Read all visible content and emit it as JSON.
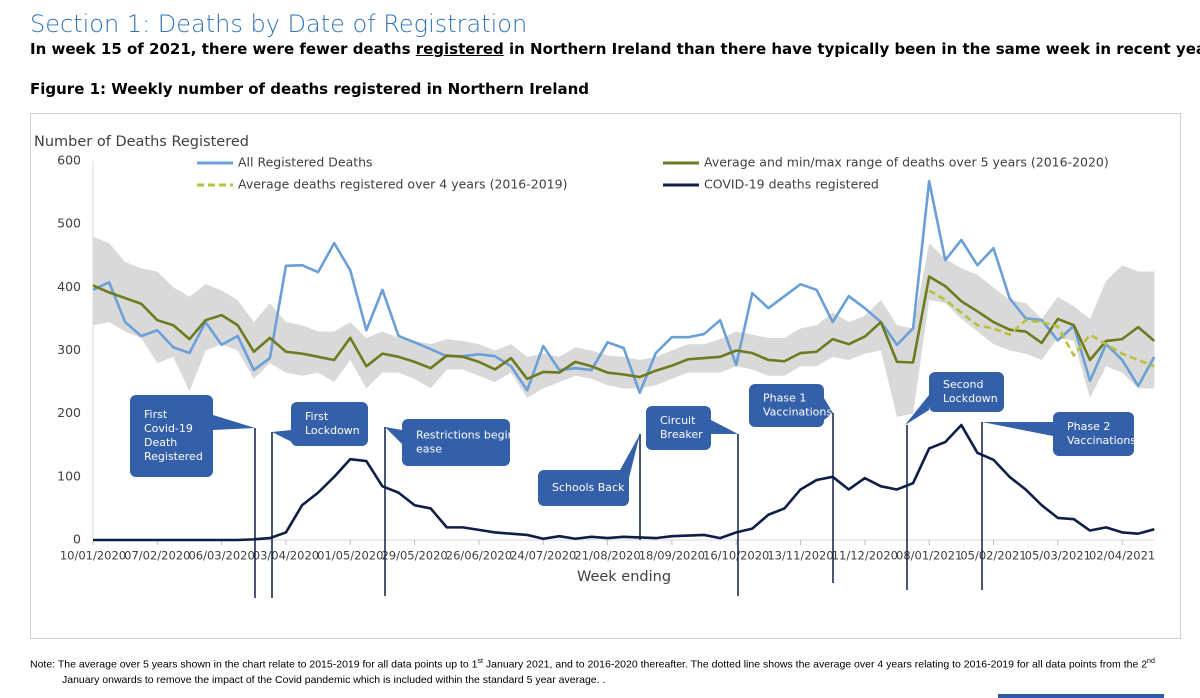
{
  "header": {
    "title": "Section 1: Deaths by Date of Registration",
    "subtitle": [
      "In week 15 of 2021, there were fewer deaths ",
      "registered",
      " in Northern Ireland than there have typically been in the same week in recent years."
    ],
    "figure_title": "Figure 1: Weekly number of deaths registered in Northern Ireland"
  },
  "chart_data": {
    "type": "line",
    "y_label": "Number of Deaths Registered",
    "x_label": "Week ending",
    "ylim": [
      0,
      600
    ],
    "yticks": [
      0,
      100,
      200,
      300,
      400,
      500,
      600
    ],
    "grid": false,
    "legend": "top",
    "categories": [
      "10/01/2020",
      null,
      null,
      null,
      "07/02/2020",
      null,
      null,
      null,
      "06/03/2020",
      null,
      null,
      null,
      "03/04/2020",
      null,
      null,
      null,
      "01/05/2020",
      null,
      null,
      null,
      "29/05/2020",
      null,
      null,
      null,
      "26/06/2020",
      null,
      null,
      null,
      "24/07/2020",
      null,
      null,
      null,
      "21/08/2020",
      null,
      null,
      null,
      "18/09/2020",
      null,
      null,
      null,
      "16/10/2020",
      null,
      null,
      null,
      "13/11/2020",
      null,
      null,
      null,
      "11/12/2020",
      null,
      null,
      null,
      "08/01/2021",
      null,
      null,
      null,
      "05/02/2021",
      null,
      null,
      null,
      "05/03/2021",
      null,
      null,
      null,
      "02/04/2021",
      null,
      null
    ],
    "series": [
      {
        "name": "All Registered Deaths",
        "color": "#6a9fd8",
        "style": "solid",
        "values": [
          396,
          408,
          345,
          323,
          332,
          305,
          296,
          345,
          309,
          323,
          269,
          288,
          434,
          435,
          424,
          470,
          427,
          332,
          396,
          323,
          313,
          302,
          291,
          291,
          294,
          291,
          275,
          237,
          307,
          269,
          272,
          269,
          313,
          304,
          233,
          296,
          321,
          321,
          326,
          348,
          277,
          391,
          367,
          386,
          405,
          396,
          345,
          386,
          367,
          345,
          309,
          335,
          568,
          443,
          475,
          435,
          462,
          383,
          351,
          348,
          316,
          339,
          252,
          310,
          285,
          244,
          290
        ]
      },
      {
        "name": "Average and min/max range of deaths over 5 years (2016-2020)",
        "color": "#6f7a1f",
        "style": "solid",
        "band_color": "#d9d9d9",
        "values": [
          403,
          392,
          383,
          374,
          348,
          340,
          318,
          348,
          356,
          340,
          298,
          320,
          298,
          295,
          290,
          285,
          320,
          275,
          295,
          290,
          282,
          272,
          292,
          290,
          282,
          270,
          288,
          255,
          266,
          265,
          282,
          275,
          265,
          262,
          258,
          268,
          276,
          286,
          288,
          290,
          300,
          296,
          285,
          283,
          296,
          298,
          318,
          310,
          322,
          345,
          282,
          281,
          417,
          402,
          378,
          362,
          345,
          333,
          330,
          312,
          350,
          340,
          285,
          315,
          318,
          337,
          315
        ],
        "max": [
          480,
          470,
          440,
          430,
          425,
          400,
          385,
          405,
          395,
          380,
          345,
          375,
          345,
          340,
          330,
          330,
          345,
          320,
          330,
          320,
          315,
          310,
          318,
          315,
          310,
          300,
          310,
          290,
          295,
          290,
          305,
          300,
          292,
          290,
          285,
          290,
          300,
          310,
          310,
          318,
          330,
          325,
          320,
          320,
          335,
          340,
          360,
          345,
          355,
          380,
          340,
          335,
          470,
          445,
          430,
          420,
          400,
          380,
          375,
          350,
          385,
          370,
          350,
          410,
          435,
          425,
          425
        ],
        "min": [
          340,
          345,
          330,
          320,
          280,
          290,
          235,
          300,
          310,
          300,
          255,
          280,
          265,
          260,
          265,
          250,
          285,
          240,
          265,
          265,
          255,
          240,
          270,
          270,
          260,
          250,
          265,
          225,
          240,
          250,
          260,
          255,
          245,
          240,
          240,
          245,
          255,
          265,
          265,
          265,
          275,
          270,
          260,
          260,
          275,
          275,
          290,
          285,
          295,
          300,
          195,
          200,
          380,
          375,
          350,
          330,
          310,
          300,
          295,
          285,
          320,
          315,
          225,
          275,
          265,
          240,
          240
        ]
      },
      {
        "name": "Average deaths registered over 4 years (2016-2019)",
        "color": "#b8c13c",
        "style": "dashed",
        "values": [
          null,
          null,
          null,
          null,
          null,
          null,
          null,
          null,
          null,
          null,
          null,
          null,
          null,
          null,
          null,
          null,
          null,
          null,
          null,
          null,
          null,
          null,
          null,
          null,
          null,
          null,
          null,
          null,
          null,
          null,
          null,
          null,
          null,
          null,
          null,
          null,
          null,
          null,
          null,
          null,
          null,
          null,
          null,
          null,
          null,
          null,
          null,
          null,
          null,
          null,
          null,
          null,
          395,
          380,
          360,
          340,
          335,
          325,
          348,
          345,
          338,
          292,
          325,
          310,
          295,
          285,
          275
        ]
      },
      {
        "name": "COVID-19 deaths registered",
        "color": "#0d1e47",
        "style": "solid",
        "values": [
          0,
          0,
          0,
          0,
          0,
          0,
          0,
          0,
          0,
          0,
          1,
          3,
          12,
          55,
          75,
          100,
          128,
          125,
          85,
          75,
          55,
          50,
          20,
          20,
          16,
          12,
          10,
          8,
          2,
          6,
          2,
          5,
          3,
          5,
          4,
          3,
          6,
          7,
          8,
          3,
          12,
          18,
          40,
          50,
          80,
          95,
          100,
          80,
          98,
          85,
          80,
          90,
          145,
          155,
          182,
          138,
          127,
          100,
          80,
          55,
          35,
          33,
          15,
          20,
          12,
          10,
          17
        ]
      }
    ],
    "annotations": [
      {
        "lines": [
          "First",
          "Covid-19",
          "Death",
          "Registered"
        ]
      },
      {
        "lines": [
          "First",
          "Lockdown"
        ]
      },
      {
        "lines": [
          "Restrictions begin to",
          "ease"
        ]
      },
      {
        "lines": [
          "Schools Back"
        ]
      },
      {
        "lines": [
          "Circuit",
          "Breaker"
        ]
      },
      {
        "lines": [
          "Phase 1",
          "Vaccinations"
        ]
      },
      {
        "lines": [
          "Second",
          "Lockdown"
        ]
      },
      {
        "lines": [
          "Phase 2",
          "Vaccinations"
        ]
      }
    ]
  },
  "note": [
    "Note: The average over 5 years shown in the chart relate to 2015-2019 for all data points up to 1",
    "st",
    " January 2021, and to 2016-2020 thereafter. The dotted line shows the average over 4 years relating to 2016-2019 for all data points from the 2",
    "nd",
    " January onwards to remove the impact of the Covid pandemic which is included within the standard 5 year average. ."
  ]
}
